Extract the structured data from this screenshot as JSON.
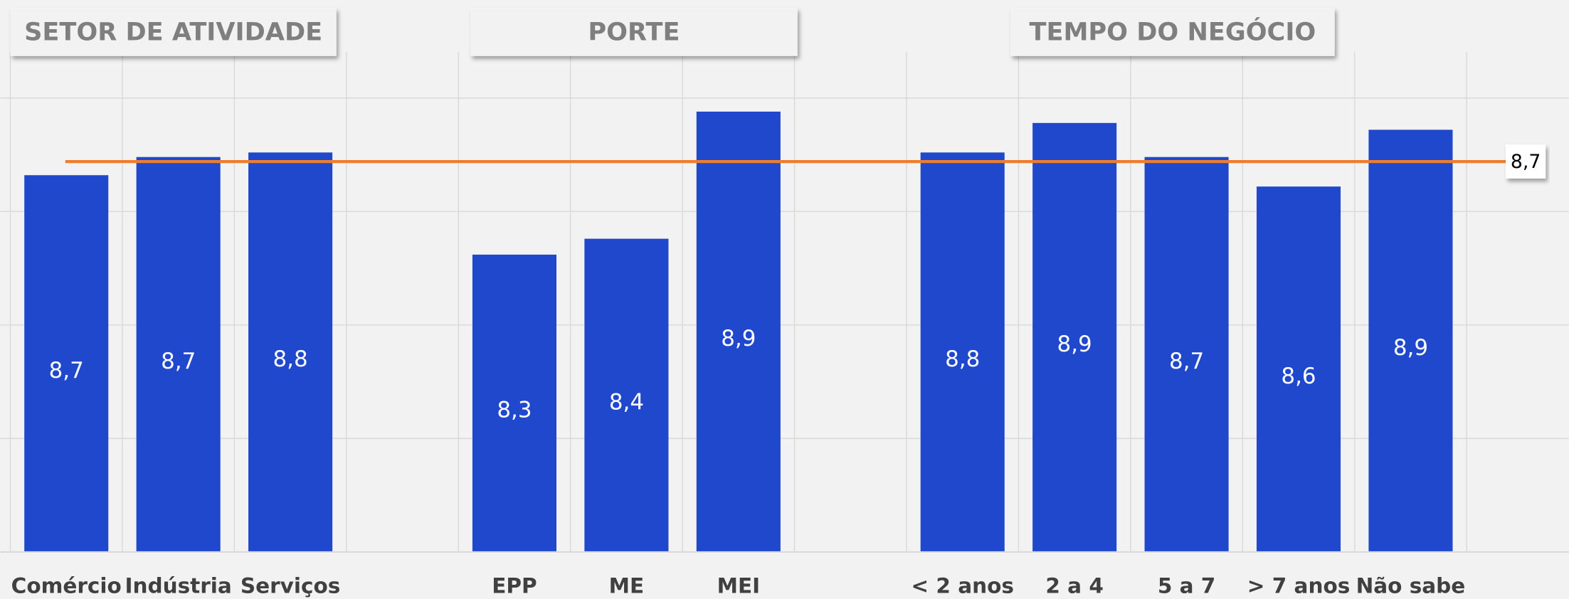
{
  "chart_data": {
    "type": "bar",
    "group_labels": [
      "SETOR DE ATIVIDADE",
      "PORTE",
      "TEMPO DO NEGÓCIO"
    ],
    "categories": [
      "Comércio",
      "Indústria",
      "Serviços",
      null,
      "EPP",
      "ME",
      "MEI",
      null,
      "< 2 anos",
      "2 a 4",
      "5 a 7",
      "> 7 anos",
      "Não sabe",
      null
    ],
    "values": [
      8.66,
      8.74,
      8.76,
      null,
      8.31,
      8.38,
      8.94,
      null,
      8.76,
      8.89,
      8.74,
      8.61,
      8.86,
      null
    ],
    "value_labels": [
      "8,7",
      "8,7",
      "8,8",
      null,
      "8,3",
      "8,4",
      "8,9",
      null,
      "8,8",
      "8,9",
      "8,7",
      "8,6",
      "8,9",
      null
    ],
    "color": "#1f48cc",
    "ylim": [
      7,
      9
    ],
    "yticks": [
      7,
      7.5,
      8,
      8.5,
      9
    ],
    "grid": true,
    "reference_line": {
      "value": 8.72,
      "label": "8,7",
      "color": "#ed7d31"
    }
  }
}
